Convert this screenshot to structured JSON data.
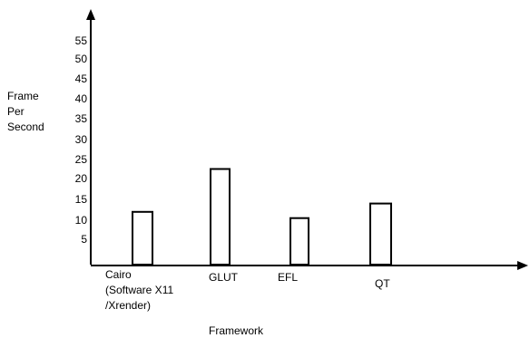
{
  "chart_data": {
    "type": "bar",
    "categories": [
      "Cairo\n(Software X11\n/Xrender)",
      "GLUT",
      "EFL",
      "QT"
    ],
    "values": [
      12,
      22.5,
      10.5,
      14
    ],
    "xlabel": "Framework",
    "ylabel": "Frame\nPer\nSecond",
    "yticks": [
      5,
      10,
      15,
      20,
      25,
      30,
      35,
      40,
      45,
      50,
      55
    ],
    "ylim": [
      0,
      55
    ],
    "grid": false,
    "legend": "none",
    "bar_fill": "#ffffff",
    "bar_stroke": "#000000"
  }
}
